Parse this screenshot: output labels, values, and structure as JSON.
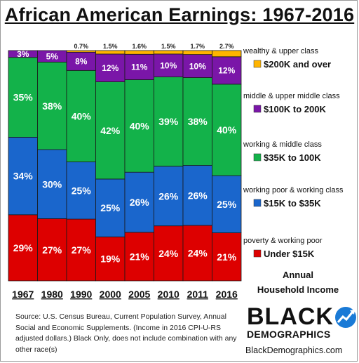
{
  "title": "African American Earnings: 1967-2016",
  "colors": {
    "under15": "#dd0000",
    "k15to35": "#1a66cc",
    "k35to100": "#13b24a",
    "k100to200": "#7a16a8",
    "k200plus": "#ffb400"
  },
  "chart_data": {
    "type": "bar",
    "stacked": true,
    "categories": [
      "1967",
      "1980",
      "1990",
      "2000",
      "2005",
      "2010",
      "2011",
      "2016"
    ],
    "series": [
      {
        "name": "Under $15K",
        "group": "poverty & working poor",
        "color": "#dd0000",
        "values": [
          29,
          27,
          27,
          19,
          21,
          24,
          24,
          21
        ],
        "labels": [
          "29%",
          "27%",
          "27%",
          "19%",
          "21%",
          "24%",
          "24%",
          "21%"
        ]
      },
      {
        "name": "$15K to $35K",
        "group": "working poor & working class",
        "color": "#1a66cc",
        "values": [
          34,
          30,
          25,
          25,
          26,
          26,
          26,
          25
        ],
        "labels": [
          "34%",
          "30%",
          "25%",
          "25%",
          "26%",
          "26%",
          "26%",
          "25%"
        ]
      },
      {
        "name": "$35K to 100K",
        "group": "working & middle class",
        "color": "#13b24a",
        "values": [
          35,
          38,
          40,
          42,
          40,
          39,
          38,
          40
        ],
        "labels": [
          "35%",
          "38%",
          "40%",
          "42%",
          "40%",
          "39%",
          "38%",
          "40%"
        ]
      },
      {
        "name": "$100K to 200K",
        "group": "middle & upper middle class",
        "color": "#7a16a8",
        "values": [
          3,
          5,
          8,
          12,
          11,
          10,
          10,
          12
        ],
        "labels": [
          "3%",
          "5%",
          "8%",
          "12%",
          "11%",
          "10%",
          "10%",
          "12%"
        ]
      },
      {
        "name": "$200K and over",
        "group": "wealthy & upper class",
        "color": "#ffb400",
        "values": [
          0,
          0,
          0.7,
          1.5,
          1.6,
          1.5,
          1.7,
          2.7
        ],
        "labels": [
          "",
          "",
          "0.7%",
          "1.5%",
          "1.6%",
          "1.5%",
          "1.7%",
          "2.7%"
        ]
      }
    ],
    "ylim": [
      0,
      100
    ],
    "legend_position": "right"
  },
  "annual_label_1": "Annual",
  "annual_label_2": "Household Income",
  "source_text": "Source:  U.S. Census Bureau, Current Population Survey, Annual Social and Economic Supplements. (Income in 2016 CPI-U-RS adjusted dollars.) Black Only, does not include combination with any other race(s)",
  "logo": {
    "word1": "BLACK",
    "word2": "DEMOGRAPHICS",
    "site": "BlackDemographics.com"
  }
}
